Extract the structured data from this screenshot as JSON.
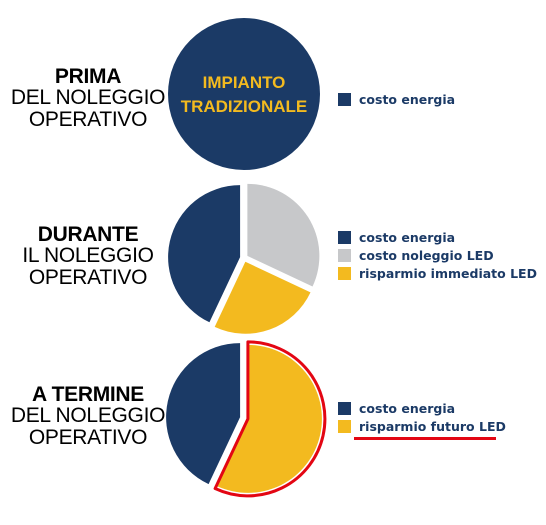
{
  "colors": {
    "navy": "#1b3a66",
    "grey": "#c7c8ca",
    "yellow": "#f3ba1f",
    "highlight": "#e30613",
    "text_dark": "#000000"
  },
  "rows": [
    {
      "heading": "PRIMA",
      "line2": "DEL NOLEGGIO",
      "line3": "OPERATIVO",
      "pie_inner_text": [
        "IMPIANTO",
        "TRADIZIONALE"
      ],
      "legend": [
        "costo energia"
      ]
    },
    {
      "heading": "DURANTE",
      "line2": "IL NOLEGGIO",
      "line3": "OPERATIVO",
      "legend": [
        "costo energia",
        "costo noleggio LED",
        "risparmio immediato LED"
      ]
    },
    {
      "heading": "A TERMINE",
      "line2": "DEL NOLEGGIO",
      "line3": "OPERATIVO",
      "legend": [
        "costo energia",
        "risparmio futuro LED"
      ]
    }
  ],
  "chart_data": [
    {
      "type": "pie",
      "title": "PRIMA DEL NOLEGGIO OPERATIVO",
      "labels": [
        "costo energia"
      ],
      "values": [
        100
      ],
      "colors": [
        "#1b3a66"
      ],
      "annotation": "IMPIANTO TRADIZIONALE"
    },
    {
      "type": "pie",
      "title": "DURANTE IL NOLEGGIO OPERATIVO",
      "labels": [
        "costo energia",
        "costo noleggio LED",
        "risparmio immediato LED"
      ],
      "values": [
        43,
        32,
        25
      ],
      "colors": [
        "#1b3a66",
        "#c7c8ca",
        "#f3ba1f"
      ],
      "exploded": true
    },
    {
      "type": "pie",
      "title": "A TERMINE DEL NOLEGGIO OPERATIVO",
      "labels": [
        "costo energia",
        "risparmio futuro LED"
      ],
      "values": [
        43,
        57
      ],
      "colors": [
        "#1b3a66",
        "#f3ba1f"
      ],
      "exploded": true,
      "highlighted": "risparmio futuro LED"
    }
  ]
}
